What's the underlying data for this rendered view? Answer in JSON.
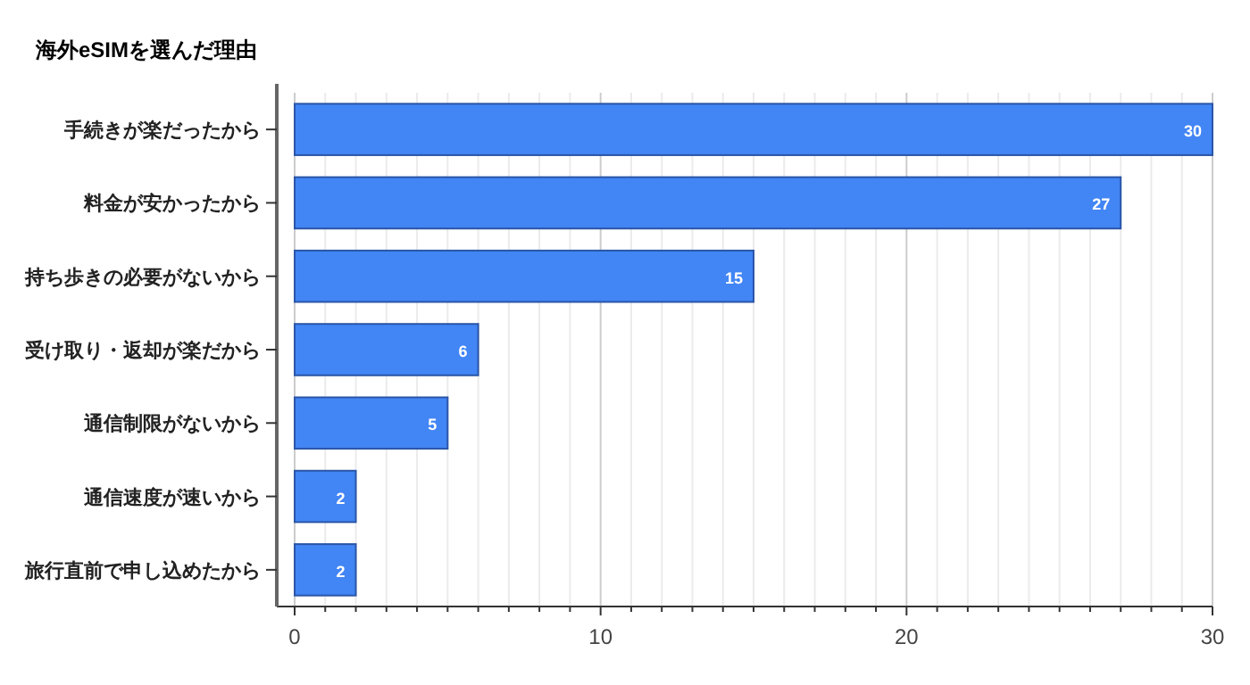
{
  "chart_data": {
    "type": "bar",
    "orientation": "horizontal",
    "title": "海外eSIMを選んだ理由",
    "categories": [
      "手続きが楽だったから",
      "料金が安かったから",
      "持ち歩きの必要がないから",
      "受け取り・返却が楽だから",
      "通信制限がないから",
      "通信速度が速いから",
      "旅行直前で申し込めたから"
    ],
    "values": [
      30,
      27,
      15,
      6,
      5,
      2,
      2
    ],
    "color": "#4285f4",
    "data_labels": true,
    "xlim": [
      0,
      30
    ],
    "xticks": [
      0,
      {
        "value": 1,
        "label": null
      },
      {
        "value": 2,
        "label": null
      },
      {
        "value": 3,
        "label": null
      },
      {
        "value": 4,
        "label": null
      },
      {
        "value": 5,
        "label": null
      },
      {
        "value": 6,
        "label": null
      },
      {
        "value": 7,
        "label": null
      },
      {
        "value": 8,
        "label": null
      },
      {
        "value": 9,
        "label": null
      },
      10,
      {
        "value": 11,
        "label": null
      },
      {
        "value": 12,
        "label": null
      },
      {
        "value": 13,
        "label": null
      },
      {
        "value": 14,
        "label": null
      },
      {
        "value": 15,
        "label": null
      },
      {
        "value": 16,
        "label": null
      },
      {
        "value": 17,
        "label": null
      },
      {
        "value": 18,
        "label": null
      },
      {
        "value": 19,
        "label": null
      },
      20,
      {
        "value": 21,
        "label": null
      },
      {
        "value": 22,
        "label": null
      },
      {
        "value": 23,
        "label": null
      },
      {
        "value": 24,
        "label": null
      },
      {
        "value": 25,
        "label": null
      },
      {
        "value": 26,
        "label": null
      },
      {
        "value": 27,
        "label": null
      },
      {
        "value": 28,
        "label": null
      },
      {
        "value": 29,
        "label": null
      },
      30
    ],
    "grid": "x"
  }
}
